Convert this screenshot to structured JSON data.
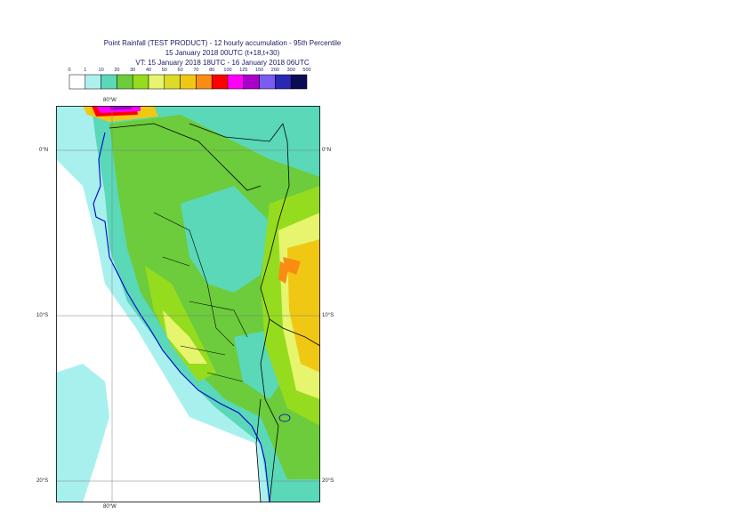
{
  "header": {
    "line1": "Point Rainfall (TEST PRODUCT) - 12 hourly accumulation - 95th Percentile",
    "line2": "15 January 2018 00UTC (t+18,t+30)",
    "line3": "VT: 15 January 2018 18UTC - 16 January 2018 06UTC"
  },
  "legend": {
    "thresholds": [
      "0",
      "1",
      "10",
      "20",
      "30",
      "40",
      "50",
      "60",
      "70",
      "80",
      "100",
      "125",
      "150",
      "200",
      "300",
      "500"
    ],
    "colors": [
      "#ffffff",
      "#aef0f0",
      "#5ad8b8",
      "#6ccc3c",
      "#96dc1e",
      "#e6f46e",
      "#dcdc28",
      "#f0c814",
      "#fa8c14",
      "#ff0000",
      "#ff00ff",
      "#aa00cc",
      "#7a5cf0",
      "#2828b4",
      "#0a0a55"
    ]
  },
  "map": {
    "labels": {
      "top_lon": "80°W",
      "bottom_lon": "80°W",
      "lat_0_left": "0°N",
      "lat_0_right": "0°N",
      "lat_10_left": "10°S",
      "lat_10_right": "10°S",
      "lat_20_left": "20°S",
      "lat_20_right": "20°S"
    },
    "colors": {
      "sea_light": "#a8f0ee",
      "mid_teal": "#5ad8b8",
      "green": "#6ccc3c",
      "light_green": "#96dc1e",
      "yellow": "#e6f46e",
      "olive_yellow": "#dcdc28",
      "orange": "#f0c814",
      "dark_orange": "#fa8c14",
      "red": "#ff0000",
      "magenta": "#ff00ff",
      "coast": "#0000cc",
      "border": "#000000"
    }
  }
}
